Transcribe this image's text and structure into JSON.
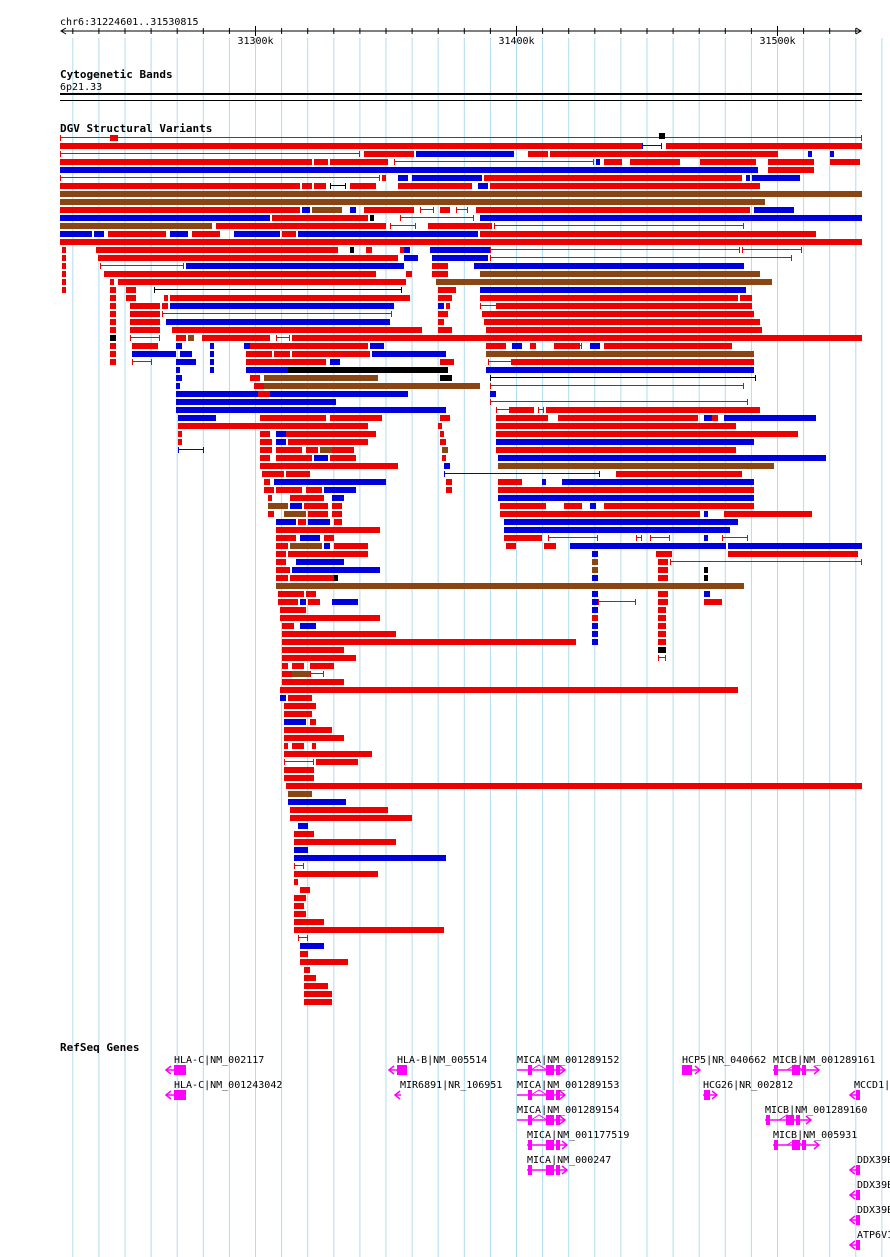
{
  "ruler": {
    "region_label": "chr6:31224601..31530815",
    "ticks": [
      {
        "label": "31300k",
        "pos": 31300000
      },
      {
        "label": "31400k",
        "pos": 31400000
      },
      {
        "label": "31500k",
        "pos": 31500000
      }
    ]
  },
  "tracks": {
    "cytobands": {
      "title": "Cytogenetic Bands",
      "band": "6p21.33"
    },
    "dgv": {
      "title": "DGV Structural Variants"
    },
    "refseq": {
      "title": "RefSeq Genes"
    }
  },
  "colors": {
    "gain": "#ee0000",
    "loss": "#0000dd",
    "gain_loss": "#8b4513",
    "other": "#000000",
    "gene": "#ff00ff",
    "grid": "#b0dcee"
  },
  "genes": [
    {
      "label": "HLA-C|NM_002117"
    },
    {
      "label": "HLA-C|NM_001243042"
    },
    {
      "label": "HLA-B|NM_005514"
    },
    {
      "label": "MIR6891|NR_106951"
    },
    {
      "label": "MICA|NM_001289152"
    },
    {
      "label": "MICA|NM_001289153"
    },
    {
      "label": "MICA|NM_001289154"
    },
    {
      "label": "MICA|NM_001177519"
    },
    {
      "label": "MICA|NM_000247"
    },
    {
      "label": "HCP5|NR_040662"
    },
    {
      "label": "HCG26|NR_002812"
    },
    {
      "label": "MICB|NM_001289161"
    },
    {
      "label": "MICB|NM_001289160"
    },
    {
      "label": "MICB|NM_005931"
    },
    {
      "label": "MCCD1|"
    },
    {
      "label": "DDX39B"
    },
    {
      "label": "DDX39B"
    },
    {
      "label": "DDX39B"
    },
    {
      "label": "ATP6V1"
    }
  ]
}
